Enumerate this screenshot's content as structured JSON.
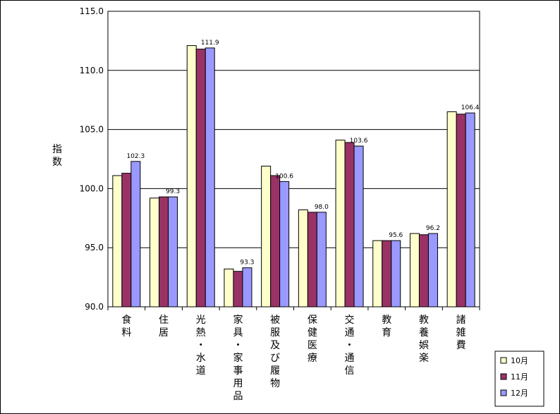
{
  "chart_data": {
    "type": "bar",
    "ylabel": "指数",
    "ylim": [
      90,
      115
    ],
    "yticks": [
      90.0,
      95.0,
      100.0,
      105.0,
      110.0,
      115.0
    ],
    "grid": true,
    "legend_position": "bottom-right",
    "categories": [
      "食料",
      "住居",
      "光熱・水道",
      "家具・家事用品",
      "被服及び履物",
      "保健医療",
      "交通・通信",
      "教育",
      "教養娯楽",
      "諸雑費"
    ],
    "series": [
      {
        "name": "10月",
        "color": "#ffffcc",
        "values": [
          101.1,
          99.2,
          112.1,
          93.2,
          101.9,
          98.2,
          104.1,
          95.6,
          96.2,
          106.5
        ]
      },
      {
        "name": "11月",
        "color": "#993366",
        "values": [
          101.3,
          99.3,
          111.8,
          93.0,
          101.1,
          98.0,
          103.9,
          95.6,
          96.1,
          106.3
        ]
      },
      {
        "name": "12月",
        "color": "#9999ff",
        "values": [
          102.3,
          99.3,
          111.9,
          93.3,
          100.6,
          98.0,
          103.6,
          95.6,
          96.2,
          106.4
        ]
      }
    ],
    "data_labels": [
      "102.3",
      "99.3",
      "111.9",
      "93.3",
      "100.6",
      "98.0",
      "103.6",
      "95.6",
      "96.2",
      "106.4"
    ]
  }
}
